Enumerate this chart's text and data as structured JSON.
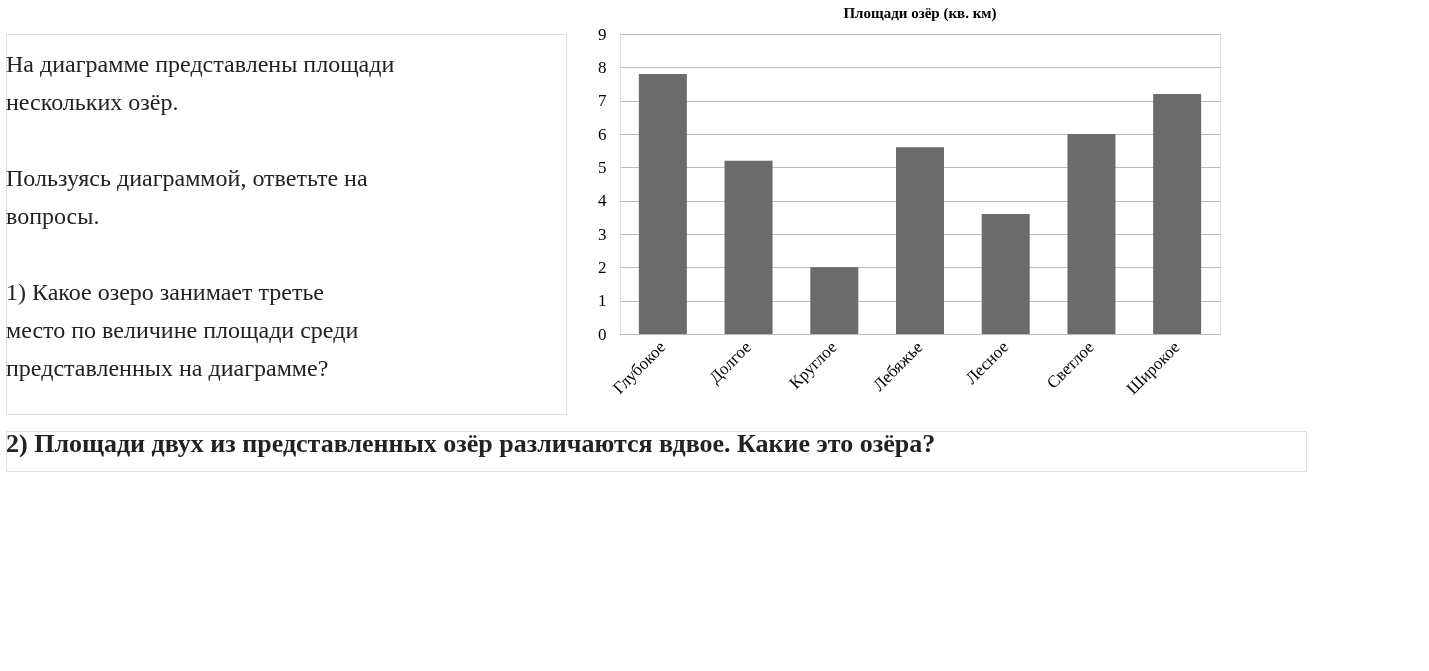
{
  "chart_data": {
    "type": "bar",
    "title": "Площади озёр (кв. км)",
    "categories": [
      "Глубокое",
      "Долгое",
      "Круглое",
      "Лебяжье",
      "Лесное",
      "Светлое",
      "Широкое"
    ],
    "values": [
      7.8,
      5.2,
      2.0,
      5.6,
      3.6,
      6.0,
      7.2
    ],
    "color": "#6b6b6b",
    "ylim": [
      0,
      9
    ],
    "yticks": [
      0,
      1,
      2,
      3,
      4,
      5,
      6,
      7,
      8,
      9
    ],
    "grid": "y",
    "annotations": [
      "На диаграмме представлены площади нескольких озёр.",
      "Пользуясь диаграммой, ответьте на вопросы.",
      "1) Какое озеро занимает третье место по величине площади среди представленных на диаграмме?",
      "2) Площади двух из представленных озёр различаются вдвое. Какие это озёра?"
    ]
  }
}
